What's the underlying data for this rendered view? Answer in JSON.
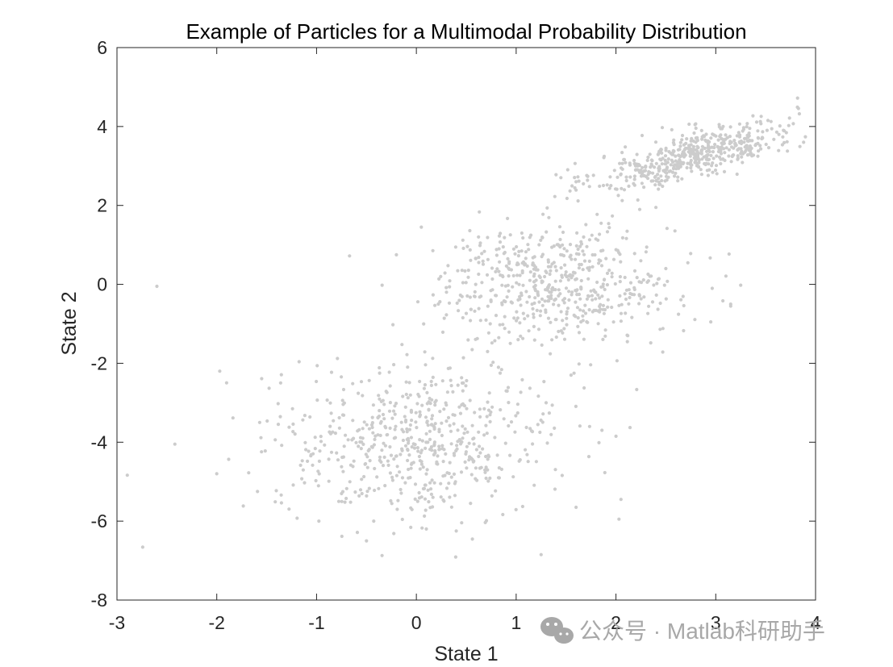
{
  "chart_data": {
    "type": "scatter",
    "title": "Example of Particles for a Multimodal Probability Distribution",
    "xlabel": "State 1",
    "ylabel": "State 2",
    "xlim": [
      -3,
      4
    ],
    "ylim": [
      -8,
      6
    ],
    "xticks": [
      -3,
      -2,
      -1,
      0,
      1,
      2,
      3,
      4
    ],
    "yticks": [
      -8,
      -6,
      -4,
      -2,
      0,
      2,
      4,
      6
    ],
    "grid": false,
    "legend": "none",
    "marker_color": "#cccccc",
    "series": [
      {
        "clusters": [
          {
            "center": [
              2.8,
              3.3
            ],
            "std": [
              0.5,
              0.45
            ],
            "corr": 0.75,
            "count": 520
          },
          {
            "center": [
              1.4,
              0.0
            ],
            "std": [
              0.6,
              0.75
            ],
            "corr": 0.0,
            "count": 560
          },
          {
            "center": [
              0.0,
              -4.0
            ],
            "std": [
              0.7,
              0.95
            ],
            "corr": 0.0,
            "count": 600
          }
        ],
        "points": [
          [
            -2.6,
            -0.05
          ],
          [
            -2.42,
            -4.05
          ],
          [
            -1.97,
            -2.2
          ],
          [
            -2.0,
            -4.8
          ],
          [
            -1.57,
            -3.5
          ],
          [
            -0.67,
            0.72
          ],
          [
            -0.2,
            0.75
          ],
          [
            0.05,
            1.45
          ],
          [
            -0.5,
            -6.5
          ],
          [
            1.25,
            -6.85
          ],
          [
            2.0,
            -3.85
          ],
          [
            2.05,
            -5.45
          ],
          [
            2.03,
            -5.95
          ],
          [
            2.5,
            0.4
          ],
          [
            3.25,
            -0.02
          ],
          [
            3.15,
            -0.55
          ],
          [
            2.95,
            -0.95
          ],
          [
            3.82,
            4.72
          ],
          [
            3.88,
            3.6
          ],
          [
            2.4,
            1.95
          ],
          [
            1.4,
            2.78
          ],
          [
            1.6,
            2.6
          ],
          [
            1.55,
            -2.3
          ],
          [
            1.58,
            -2.25
          ],
          [
            0.75,
            -2.05
          ],
          [
            0.9,
            -2.7
          ],
          [
            1.6,
            -5.65
          ],
          [
            0.1,
            -6.2
          ],
          [
            0.4,
            -6.25
          ],
          [
            1.3,
            -3.0
          ]
        ]
      }
    ]
  },
  "watermark": {
    "text": "公众号 · Matlab科研助手",
    "icon": "wechat-icon"
  }
}
